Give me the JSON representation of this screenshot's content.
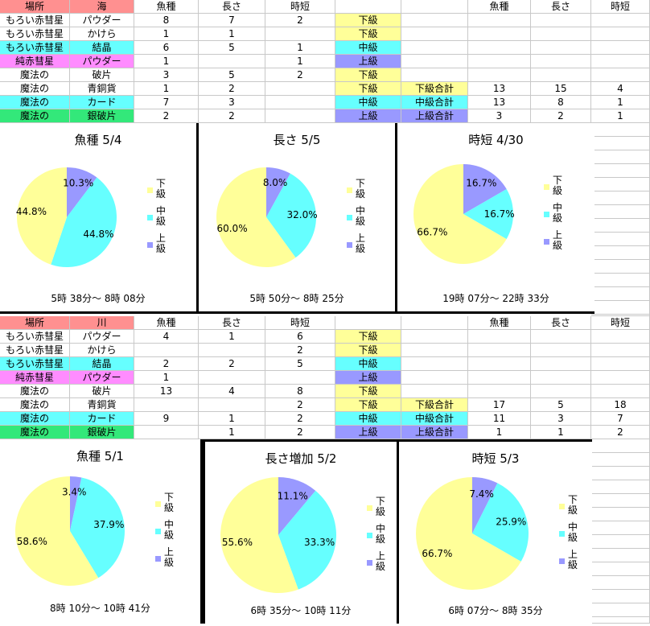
{
  "colors": {
    "low": "#ffff99",
    "mid": "#66ffff",
    "high": "#9999ff",
    "header": "#ff9090",
    "pink": "#ff8cff",
    "cyan": "#66ffff",
    "green": "#33e87a"
  },
  "tables": [
    {
      "header": {
        "place": "場所",
        "area": "海",
        "fish": "魚種",
        "length": "長さ",
        "time": "時短",
        "sfish": "魚種",
        "slength": "長さ",
        "stime": "時短"
      },
      "rows": [
        {
          "place": "もろい赤彗星",
          "item": "パウダー",
          "fish": "8",
          "length": "7",
          "time": "2",
          "grade": "下級",
          "gclass": "low",
          "rowclass": "",
          "sumlabel": "",
          "sfish": "",
          "slength": "",
          "stime": ""
        },
        {
          "place": "もろい赤彗星",
          "item": "かけら",
          "fish": "1",
          "length": "1",
          "time": "",
          "grade": "下級",
          "gclass": "low",
          "rowclass": "",
          "sumlabel": "",
          "sfish": "",
          "slength": "",
          "stime": ""
        },
        {
          "place": "もろい赤彗星",
          "item": "結晶",
          "fish": "6",
          "length": "5",
          "time": "1",
          "grade": "中級",
          "gclass": "mid",
          "rowclass": "cyan",
          "sumlabel": "",
          "sfish": "",
          "slength": "",
          "stime": ""
        },
        {
          "place": "純赤彗星",
          "item": "パウダー",
          "fish": "1",
          "length": "",
          "time": "1",
          "grade": "上級",
          "gclass": "high",
          "rowclass": "pink",
          "sumlabel": "",
          "sfish": "",
          "slength": "",
          "stime": ""
        },
        {
          "place": "魔法の",
          "item": "破片",
          "fish": "3",
          "length": "5",
          "time": "2",
          "grade": "下級",
          "gclass": "low",
          "rowclass": "",
          "sumlabel": "",
          "sfish": "",
          "slength": "",
          "stime": ""
        },
        {
          "place": "魔法の",
          "item": "青銅貨",
          "fish": "1",
          "length": "2",
          "time": "",
          "grade": "下級",
          "gclass": "low",
          "rowclass": "",
          "sumlabel": "下級合計",
          "sclass": "low",
          "sfish": "13",
          "slength": "15",
          "stime": "4"
        },
        {
          "place": "魔法の",
          "item": "カード",
          "fish": "7",
          "length": "3",
          "time": "",
          "grade": "中級",
          "gclass": "mid",
          "rowclass": "cyan",
          "sumlabel": "中級合計",
          "sclass": "mid",
          "sfish": "13",
          "slength": "8",
          "stime": "1"
        },
        {
          "place": "魔法の",
          "item": "銀破片",
          "fish": "2",
          "length": "2",
          "time": "",
          "grade": "上級",
          "gclass": "high",
          "rowclass": "green",
          "sumlabel": "上級合計",
          "sclass": "high",
          "sfish": "3",
          "slength": "2",
          "stime": "1"
        }
      ]
    },
    {
      "header": {
        "place": "場所",
        "area": "川",
        "fish": "魚種",
        "length": "長さ",
        "time": "時短",
        "sfish": "魚種",
        "slength": "長さ",
        "stime": "時短"
      },
      "rows": [
        {
          "place": "もろい赤彗星",
          "item": "パウダー",
          "fish": "4",
          "length": "1",
          "time": "6",
          "grade": "下級",
          "gclass": "low",
          "rowclass": "",
          "sumlabel": "",
          "sfish": "",
          "slength": "",
          "stime": ""
        },
        {
          "place": "もろい赤彗星",
          "item": "かけら",
          "fish": "",
          "length": "",
          "time": "2",
          "grade": "下級",
          "gclass": "low",
          "rowclass": "",
          "sumlabel": "",
          "sfish": "",
          "slength": "",
          "stime": ""
        },
        {
          "place": "もろい赤彗星",
          "item": "結晶",
          "fish": "2",
          "length": "2",
          "time": "5",
          "grade": "中級",
          "gclass": "mid",
          "rowclass": "cyan",
          "sumlabel": "",
          "sfish": "",
          "slength": "",
          "stime": ""
        },
        {
          "place": "純赤彗星",
          "item": "パウダー",
          "fish": "1",
          "length": "",
          "time": "",
          "grade": "上級",
          "gclass": "high",
          "rowclass": "pink",
          "sumlabel": "",
          "sfish": "",
          "slength": "",
          "stime": ""
        },
        {
          "place": "魔法の",
          "item": "破片",
          "fish": "13",
          "length": "4",
          "time": "8",
          "grade": "下級",
          "gclass": "low",
          "rowclass": "",
          "sumlabel": "",
          "sfish": "",
          "slength": "",
          "stime": ""
        },
        {
          "place": "魔法の",
          "item": "青銅貨",
          "fish": "",
          "length": "",
          "time": "2",
          "grade": "下級",
          "gclass": "low",
          "rowclass": "",
          "sumlabel": "下級合計",
          "sclass": "low",
          "sfish": "17",
          "slength": "5",
          "stime": "18"
        },
        {
          "place": "魔法の",
          "item": "カード",
          "fish": "9",
          "length": "1",
          "time": "2",
          "grade": "中級",
          "gclass": "mid",
          "rowclass": "cyan",
          "sumlabel": "中級合計",
          "sclass": "mid",
          "sfish": "11",
          "slength": "3",
          "stime": "7"
        },
        {
          "place": "魔法の",
          "item": "銀破片",
          "fish": "",
          "length": "1",
          "time": "2",
          "grade": "上級",
          "gclass": "high",
          "rowclass": "green",
          "sumlabel": "上級合計",
          "sclass": "high",
          "sfish": "1",
          "slength": "1",
          "stime": "2"
        }
      ]
    }
  ],
  "legend": [
    "下級",
    "中級",
    "上級"
  ],
  "chart_data": [
    {
      "type": "pie",
      "title": "魚種 5/4",
      "footer": "5時 38分～ 8時 08分",
      "categories": [
        "下級",
        "中級",
        "上級"
      ],
      "values": [
        44.8,
        44.8,
        10.3
      ],
      "labels": [
        "44.8%",
        "44.8%",
        "10.3%"
      ]
    },
    {
      "type": "pie",
      "title": "長さ 5/5",
      "footer": "5時 50分～ 8時 25分",
      "categories": [
        "下級",
        "中級",
        "上級"
      ],
      "values": [
        60.0,
        32.0,
        8.0
      ],
      "labels": [
        "60.0%",
        "32.0%",
        "8.0%"
      ]
    },
    {
      "type": "pie",
      "title": "時短 4/30",
      "footer": "19時 07分～ 22時 33分",
      "categories": [
        "下級",
        "中級",
        "上級"
      ],
      "values": [
        66.7,
        16.7,
        16.7
      ],
      "labels": [
        "66.7%",
        "16.7%",
        "16.7%"
      ]
    },
    {
      "type": "pie",
      "title": "魚種 5/1",
      "footer": "8時 10分～ 10時 41分",
      "categories": [
        "下級",
        "中級",
        "上級"
      ],
      "values": [
        58.6,
        37.9,
        3.4
      ],
      "labels": [
        "58.6%",
        "37.9%",
        "3.4%"
      ]
    },
    {
      "type": "pie",
      "title": "長さ増加 5/2",
      "footer": "6時 35分～ 10時 11分",
      "categories": [
        "下級",
        "中級",
        "上級"
      ],
      "values": [
        55.6,
        33.3,
        11.1
      ],
      "labels": [
        "55.6%",
        "33.3%",
        "11.1%"
      ]
    },
    {
      "type": "pie",
      "title": "時短 5/3",
      "footer": "6時 07分～ 8時 35分",
      "categories": [
        "下級",
        "中級",
        "上級"
      ],
      "values": [
        66.7,
        25.9,
        7.4
      ],
      "labels": [
        "66.7%",
        "25.9%",
        "7.4%"
      ]
    }
  ]
}
